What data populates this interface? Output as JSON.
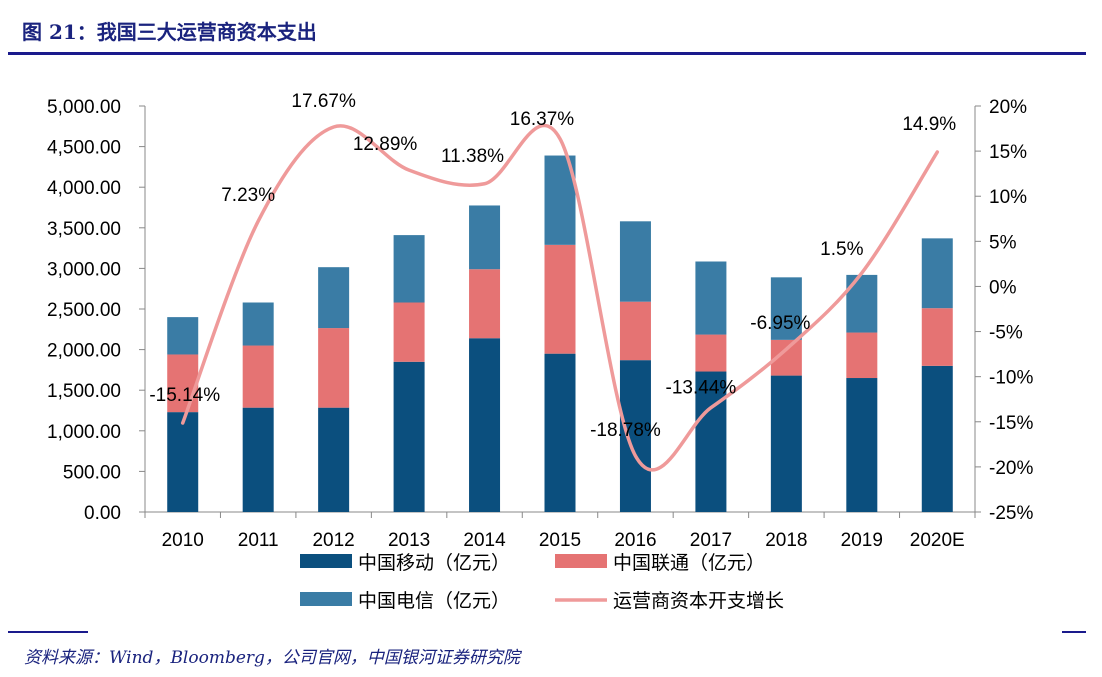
{
  "header": {
    "title": "图 21：我国三大运营商资本支出"
  },
  "footer": {
    "source": "资料来源：Wind，Bloomberg，公司官网，中国银河证券研究院"
  },
  "colors": {
    "mobile": "#0b4f7e",
    "unicom": "#e57373",
    "telecom": "#3a7ca5",
    "growth": "#ef9a9a",
    "rule": "#1a1a8c"
  },
  "chart_data": {
    "type": "bar",
    "stacked": true,
    "categories": [
      "2010",
      "2011",
      "2012",
      "2013",
      "2014",
      "2015",
      "2016",
      "2017",
      "2018",
      "2019",
      "2020E"
    ],
    "series": [
      {
        "name": "中国移动（亿元）",
        "values": [
          1230,
          1285,
          1285,
          1850,
          2140,
          1950,
          1870,
          1730,
          1680,
          1650,
          1800
        ]
      },
      {
        "name": "中国联通（亿元）",
        "values": [
          710,
          765,
          980,
          730,
          850,
          1340,
          720,
          455,
          440,
          560,
          710
        ]
      },
      {
        "name": "中国电信（亿元）",
        "values": [
          460,
          530,
          750,
          830,
          785,
          1100,
          990,
          900,
          770,
          710,
          860
        ]
      }
    ],
    "line_series": {
      "name": "运营商资本开支增长",
      "axis": "right",
      "values": [
        -15.14,
        7.23,
        17.67,
        12.89,
        11.38,
        16.37,
        -18.78,
        -13.44,
        -6.95,
        1.5,
        14.9
      ],
      "labels": [
        "-15.14%",
        "7.23%",
        "17.67%",
        "12.89%",
        "11.38%",
        "16.37%",
        "-18.78%",
        "-13.44%",
        "-6.95%",
        "1.5%",
        "14.9%"
      ]
    },
    "y_left": {
      "min": 0,
      "max": 5000,
      "step": 500,
      "tick_labels": [
        "0.00",
        "500.00",
        "1,000.00",
        "1,500.00",
        "2,000.00",
        "2,500.00",
        "3,000.00",
        "3,500.00",
        "4,000.00",
        "4,500.00",
        "5,000.00"
      ]
    },
    "y_right": {
      "min": -25,
      "max": 20,
      "step": 5,
      "tick_labels": [
        "-25%",
        "-20%",
        "-15%",
        "-10%",
        "-5%",
        "0%",
        "5%",
        "10%",
        "15%",
        "20%"
      ]
    },
    "grid": false,
    "legend": "bottom"
  }
}
